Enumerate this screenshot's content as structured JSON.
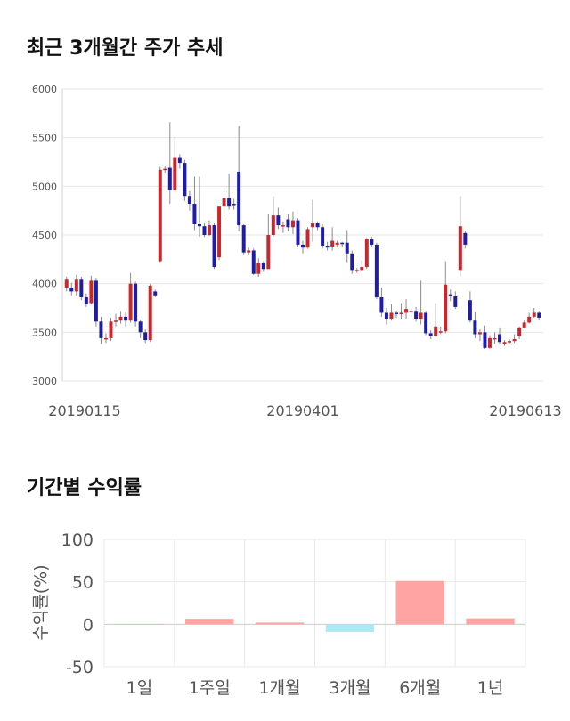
{
  "section1": {
    "title": "최근 3개월간 주가 추세"
  },
  "section2": {
    "title": "기간별 수익률"
  },
  "chart_data": [
    {
      "type": "candlestick",
      "y_ticks": [
        3000,
        3500,
        4000,
        4500,
        5000,
        5500,
        6000
      ],
      "ylim": [
        3000,
        6000
      ],
      "x_tick_labels": [
        "20190115",
        "20190401",
        "20190613"
      ],
      "colors": {
        "up": "#c8282d",
        "down": "#1d1da8",
        "grid": "#e6e6e6"
      },
      "candles": [
        [
          3960,
          4040,
          3920,
          4070
        ],
        [
          3960,
          3920,
          3880,
          4010
        ],
        [
          3920,
          4040,
          3880,
          4090
        ],
        [
          4040,
          3860,
          3830,
          4070
        ],
        [
          3860,
          3790,
          3760,
          3900
        ],
        [
          3800,
          4030,
          3790,
          4080
        ],
        [
          4030,
          3610,
          3560,
          4060
        ],
        [
          3610,
          3440,
          3380,
          3660
        ],
        [
          3440,
          3440,
          3390,
          3490
        ],
        [
          3440,
          3610,
          3410,
          3650
        ],
        [
          3610,
          3620,
          3560,
          3690
        ],
        [
          3620,
          3660,
          3590,
          3720
        ],
        [
          3660,
          3620,
          3560,
          3710
        ],
        [
          3620,
          4000,
          3600,
          4110
        ],
        [
          4000,
          3610,
          3560,
          4020
        ],
        [
          3610,
          3500,
          3440,
          3630
        ],
        [
          3500,
          3420,
          3390,
          3530
        ],
        [
          3420,
          3980,
          3400,
          4000
        ],
        [
          3920,
          3880,
          3860,
          3940
        ],
        [
          4230,
          5170,
          4220,
          5200
        ],
        [
          5170,
          5180,
          5140,
          5210
        ],
        [
          5190,
          4960,
          4820,
          5660
        ],
        [
          4960,
          5300,
          4950,
          5510
        ],
        [
          5300,
          5240,
          5180,
          5330
        ],
        [
          5240,
          4900,
          4850,
          5270
        ],
        [
          4900,
          4820,
          4750,
          4950
        ],
        [
          4820,
          4610,
          4550,
          5100
        ],
        [
          4610,
          4590,
          4480,
          5100
        ],
        [
          4590,
          4500,
          4480,
          4620
        ],
        [
          4500,
          4600,
          4490,
          4650
        ],
        [
          4600,
          4170,
          4150,
          4620
        ],
        [
          4270,
          4800,
          4240,
          4800
        ],
        [
          4800,
          4880,
          4690,
          4980
        ],
        [
          4880,
          4800,
          4760,
          5130
        ],
        [
          4820,
          4810,
          4760,
          4870
        ],
        [
          5150,
          4600,
          4540,
          5620
        ],
        [
          4600,
          4320,
          4300,
          4610
        ],
        [
          4320,
          4340,
          4300,
          4370
        ],
        [
          4340,
          4100,
          4090,
          4360
        ],
        [
          4100,
          4210,
          4070,
          4260
        ],
        [
          4210,
          4150,
          4120,
          4230
        ],
        [
          4150,
          4500,
          4150,
          4720
        ],
        [
          4500,
          4700,
          4480,
          4900
        ],
        [
          4700,
          4600,
          4560,
          4780
        ],
        [
          4600,
          4600,
          4520,
          4640
        ],
        [
          4660,
          4580,
          4540,
          4720
        ],
        [
          4580,
          4650,
          4510,
          4740
        ],
        [
          4650,
          4400,
          4380,
          4670
        ],
        [
          4400,
          4370,
          4310,
          4440
        ],
        [
          4370,
          4560,
          4360,
          4580
        ],
        [
          4580,
          4620,
          4430,
          4860
        ],
        [
          4620,
          4580,
          4550,
          4640
        ],
        [
          4580,
          4390,
          4360,
          4610
        ],
        [
          4390,
          4370,
          4340,
          4430
        ],
        [
          4380,
          4440,
          4340,
          4580
        ],
        [
          4400,
          4420,
          4380,
          4440
        ],
        [
          4420,
          4410,
          4380,
          4430
        ],
        [
          4420,
          4310,
          4220,
          4550
        ],
        [
          4310,
          4140,
          4100,
          4340
        ],
        [
          4140,
          4140,
          4110,
          4160
        ],
        [
          4140,
          4170,
          4130,
          4240
        ],
        [
          4170,
          4460,
          4150,
          4470
        ],
        [
          4460,
          4400,
          4380,
          4480
        ],
        [
          4400,
          3860,
          3840,
          4420
        ],
        [
          3860,
          3700,
          3660,
          3960
        ],
        [
          3700,
          3640,
          3580,
          3750
        ],
        [
          3640,
          3700,
          3620,
          3790
        ],
        [
          3700,
          3690,
          3650,
          3720
        ],
        [
          3690,
          3700,
          3640,
          3800
        ],
        [
          3700,
          3740,
          3640,
          3840
        ],
        [
          3720,
          3720,
          3690,
          3740
        ],
        [
          3720,
          3640,
          3610,
          3760
        ],
        [
          3640,
          3700,
          3580,
          4030
        ],
        [
          3700,
          3490,
          3470,
          3720
        ],
        [
          3490,
          3460,
          3430,
          3520
        ],
        [
          3460,
          3560,
          3450,
          3800
        ],
        [
          3500,
          3510,
          3480,
          3560
        ],
        [
          3510,
          3990,
          3490,
          4230
        ],
        [
          3890,
          3870,
          3820,
          3940
        ],
        [
          3870,
          3760,
          3740,
          3920
        ],
        [
          4140,
          4590,
          4080,
          4900
        ],
        [
          4520,
          4400,
          4360,
          4540
        ],
        [
          3830,
          3620,
          3600,
          3920
        ],
        [
          3620,
          3480,
          3440,
          3710
        ],
        [
          3480,
          3500,
          3410,
          3530
        ],
        [
          3500,
          3340,
          3330,
          3570
        ],
        [
          3340,
          3440,
          3330,
          3470
        ],
        [
          3440,
          3440,
          3380,
          3500
        ],
        [
          3480,
          3400,
          3380,
          3550
        ],
        [
          3380,
          3400,
          3360,
          3420
        ],
        [
          3400,
          3410,
          3380,
          3430
        ],
        [
          3410,
          3430,
          3390,
          3480
        ],
        [
          3460,
          3550,
          3430,
          3560
        ],
        [
          3550,
          3600,
          3540,
          3620
        ],
        [
          3600,
          3660,
          3590,
          3700
        ],
        [
          3660,
          3700,
          3650,
          3750
        ],
        [
          3700,
          3650,
          3620,
          3720
        ]
      ]
    },
    {
      "type": "bar",
      "categories": [
        "1일",
        "1주일",
        "1개월",
        "3개월",
        "6개월",
        "1년"
      ],
      "values": [
        0,
        6.5,
        2,
        -9,
        51,
        7
      ],
      "ylabel": "수익률(%)",
      "y_ticks": [
        100,
        50,
        0,
        -50
      ],
      "ylim": [
        -50,
        100
      ],
      "colors": {
        "positive": "#ffa3a3",
        "negative": "#aee8f2"
      }
    }
  ]
}
